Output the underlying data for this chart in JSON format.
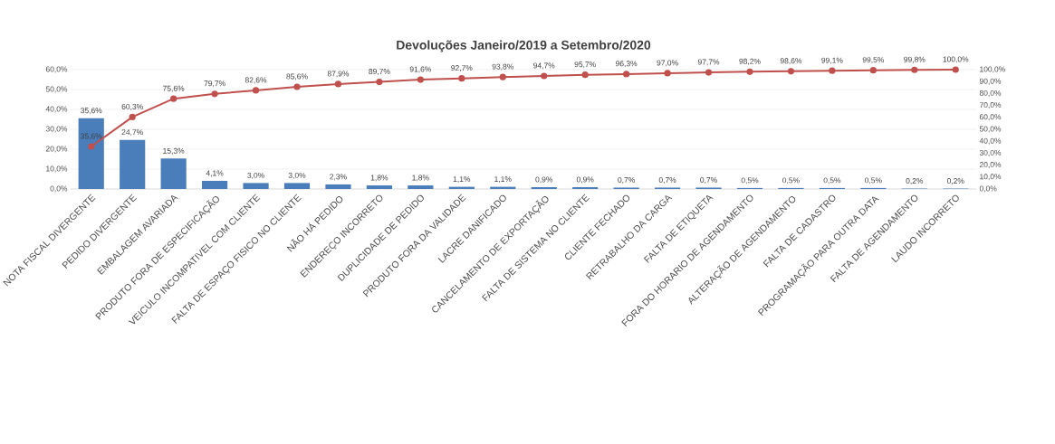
{
  "chart_data": {
    "type": "bar",
    "title": "Devoluções Janeiro/2019 a Setembro/2020",
    "categories": [
      "NOTA FISCAL DIVERGENTE",
      "PEDIDO DIVERGENTE",
      "EMBALAGEM AVARIADA",
      "PRODUTO FORA DE ESPECIFICAÇÃO",
      "VEICULO INCOMPATIVEL COM CLIENTE",
      "FALTA DE ESPAÇO FISICO NO CLIENTE",
      "NÃO HÁ PEDIDO",
      "ENDEREÇO INCORRETO",
      "DUPLICIDADE DE PEDIDO",
      "PRODUTO FORA DA VALIDADE",
      "LACRE DANIFICADO",
      "CANCELAMENTO DE EXPORTAÇÃO",
      "FALTA DE SISTEMA NO CLIENTE",
      "CLIENTE FECHADO",
      "RETRABALHO DA CARGA",
      "FALTA DE ETIQUETA",
      "FORA DO HORARIO DE AGENDAMENTO",
      "ALTERAÇÃO DE AGENDAMENTO",
      "FALTA DE CADASTRO",
      "PROGRAMAÇÃO PARA OUTRA DATA",
      "FALTA DE AGENDAMENTO",
      "LAUDO INCORRETO"
    ],
    "series": [
      {
        "color": "#4a7ebb",
        "values": [
          35.6,
          24.7,
          15.3,
          4.1,
          3.0,
          3.0,
          2.3,
          1.8,
          1.8,
          1.1,
          1.1,
          0.9,
          0.9,
          0.7,
          0.7,
          0.7,
          0.5,
          0.5,
          0.5,
          0.5,
          0.2,
          0.2
        ],
        "value_labels": [
          "35,6%",
          "24,7%",
          "15,3%",
          "4,1%",
          "3,0%",
          "3,0%",
          "2,3%",
          "1,8%",
          "1,8%",
          "1,1%",
          "1,1%",
          "0,9%",
          "0,9%",
          "0,7%",
          "0,7%",
          "0,7%",
          "0,5%",
          "0,5%",
          "0,5%",
          "0,5%",
          "0,2%",
          "0,2%"
        ]
      },
      {
        "type": "line",
        "axis": "y2",
        "color": "#c0504d",
        "values": [
          35.6,
          60.3,
          75.6,
          79.7,
          82.6,
          85.6,
          87.9,
          89.7,
          91.6,
          92.7,
          93.8,
          94.7,
          95.7,
          96.3,
          97.0,
          97.7,
          98.2,
          98.6,
          99.1,
          99.5,
          99.8,
          100.0
        ],
        "value_labels": [
          "35,6%",
          "60,3%",
          "75,6%",
          "79,7%",
          "82,6%",
          "85,6%",
          "87,9%",
          "89,7%",
          "91,6%",
          "92,7%",
          "93,8%",
          "94,7%",
          "95,7%",
          "96,3%",
          "97,0%",
          "97,7%",
          "98,2%",
          "98,6%",
          "99,1%",
          "99,5%",
          "99,8%",
          "100,0%"
        ]
      }
    ],
    "ylim": [
      0,
      60
    ],
    "yticks": [
      {
        "value": 0,
        "label": "0,0%"
      },
      {
        "value": 10,
        "label": "10,0%"
      },
      {
        "value": 20,
        "label": "20,0%"
      },
      {
        "value": 30,
        "label": "30,0%"
      },
      {
        "value": 40,
        "label": "40,0%"
      },
      {
        "value": 50,
        "label": "50,0%"
      },
      {
        "value": 60,
        "label": "60,0%"
      }
    ],
    "y2lim": [
      0,
      100
    ],
    "y2ticks": [
      {
        "value": 0,
        "label": "0,0%"
      },
      {
        "value": 10,
        "label": "10,0%"
      },
      {
        "value": 20,
        "label": "20,0%"
      },
      {
        "value": 30,
        "label": "30,0%"
      },
      {
        "value": 40,
        "label": "40,0%"
      },
      {
        "value": 50,
        "label": "50,0%"
      },
      {
        "value": 60,
        "label": "60,0%"
      },
      {
        "value": 70,
        "label": "70,0%"
      },
      {
        "value": 80,
        "label": "80,0%"
      },
      {
        "value": 90,
        "label": "90,0%"
      },
      {
        "value": 100,
        "label": "100,0%"
      }
    ],
    "grid": "y",
    "marker": "circle"
  }
}
